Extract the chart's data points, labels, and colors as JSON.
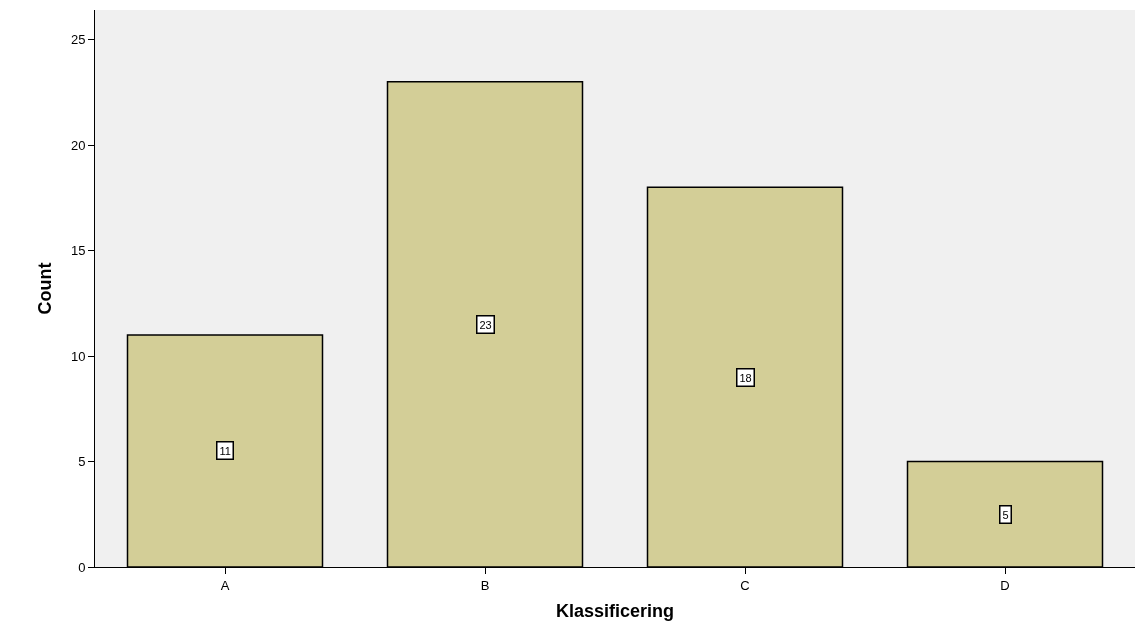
{
  "chart_data": {
    "type": "bar",
    "xlabel": "Klassificering",
    "ylabel": "Count",
    "categories": [
      "A",
      "B",
      "C",
      "D"
    ],
    "values": [
      11,
      23,
      18,
      5
    ],
    "color": "#d3ce97",
    "ylim": [
      0,
      26.4
    ],
    "yticks": [
      0,
      5,
      10,
      15,
      20,
      25
    ],
    "grid": false,
    "data_labels": true
  }
}
